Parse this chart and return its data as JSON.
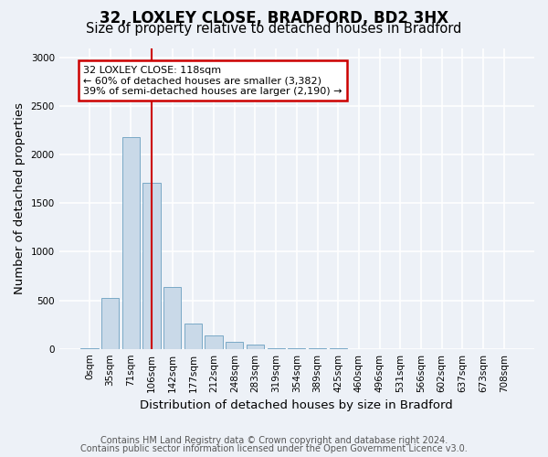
{
  "title_line1": "32, LOXLEY CLOSE, BRADFORD, BD2 3HX",
  "title_line2": "Size of property relative to detached houses in Bradford",
  "xlabel": "Distribution of detached houses by size in Bradford",
  "ylabel": "Number of detached properties",
  "bin_labels": [
    "0sqm",
    "35sqm",
    "71sqm",
    "106sqm",
    "142sqm",
    "177sqm",
    "212sqm",
    "248sqm",
    "283sqm",
    "319sqm",
    "354sqm",
    "389sqm",
    "425sqm",
    "460sqm",
    "496sqm",
    "531sqm",
    "566sqm",
    "602sqm",
    "637sqm",
    "673sqm",
    "708sqm"
  ],
  "bar_values": [
    10,
    520,
    2180,
    1710,
    635,
    260,
    140,
    75,
    40,
    10,
    5,
    2,
    2,
    1,
    0,
    0,
    0,
    0,
    0,
    0,
    0
  ],
  "bar_color": "#c9d9e8",
  "bar_edge_color": "#6a9fc0",
  "ylim": [
    0,
    3100
  ],
  "yticks": [
    0,
    500,
    1000,
    1500,
    2000,
    2500,
    3000
  ],
  "red_line_x": 3,
  "annotation_title": "32 LOXLEY CLOSE: 118sqm",
  "annotation_line2": "← 60% of detached houses are smaller (3,382)",
  "annotation_line3": "39% of semi-detached houses are larger (2,190) →",
  "annotation_box_facecolor": "#ffffff",
  "annotation_box_edgecolor": "#cc0000",
  "background_color": "#edf1f7",
  "grid_color": "#ffffff",
  "title_fontsize": 12,
  "subtitle_fontsize": 10.5,
  "axis_label_fontsize": 9.5,
  "tick_label_fontsize": 7.5,
  "footnote1": "Contains HM Land Registry data © Crown copyright and database right 2024.",
  "footnote2": "Contains public sector information licensed under the Open Government Licence v3.0.",
  "footnote_fontsize": 7.0
}
